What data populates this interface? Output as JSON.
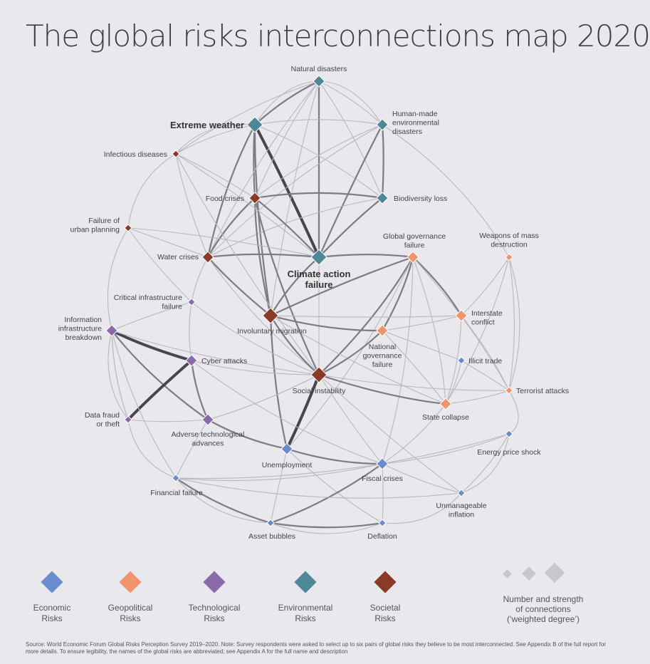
{
  "title": "The global risks interconnections map 2020",
  "colors": {
    "economic": "#6b8ccc",
    "geopolitical": "#f0956a",
    "technological": "#8a6aaa",
    "environmental": "#4e8796",
    "societal": "#8a3b27"
  },
  "nodes": [
    {
      "id": "natural-disasters",
      "label": [
        "Natural disasters"
      ],
      "category": "environmental",
      "weight": 2
    },
    {
      "id": "human-made-disasters",
      "label": [
        "Human-made",
        "environmental",
        "disasters"
      ],
      "category": "environmental",
      "weight": 2
    },
    {
      "id": "extreme-weather",
      "label": [
        "Extreme weather"
      ],
      "category": "environmental",
      "weight": 3,
      "emphasis": true
    },
    {
      "id": "infectious-diseases",
      "label": [
        "Infectious diseases"
      ],
      "category": "societal",
      "weight": 1
    },
    {
      "id": "food-crises",
      "label": [
        "Food crises"
      ],
      "category": "societal",
      "weight": 2
    },
    {
      "id": "biodiversity-loss",
      "label": [
        "Biodiversity loss"
      ],
      "category": "environmental",
      "weight": 2
    },
    {
      "id": "urban-planning",
      "label": [
        "Failure of",
        "urban planning"
      ],
      "category": "societal",
      "weight": 1
    },
    {
      "id": "global-governance",
      "label": [
        "Global governance",
        "failure"
      ],
      "category": "geopolitical",
      "weight": 2
    },
    {
      "id": "wmd",
      "label": [
        "Weapons of mass",
        "destruction"
      ],
      "category": "geopolitical",
      "weight": 1
    },
    {
      "id": "water-crises",
      "label": [
        "Water crises"
      ],
      "category": "societal",
      "weight": 2
    },
    {
      "id": "climate-action",
      "label": [
        "Climate action",
        "failure"
      ],
      "category": "environmental",
      "weight": 3,
      "emphasis": true
    },
    {
      "id": "critical-infrastructure",
      "label": [
        "Critical infrastructure",
        "failure"
      ],
      "category": "technological",
      "weight": 1
    },
    {
      "id": "interstate-conflict",
      "label": [
        "Interstate",
        "conflict"
      ],
      "category": "geopolitical",
      "weight": 2
    },
    {
      "id": "info-infrastructure",
      "label": [
        "Information",
        "infrastructure",
        "breakdown"
      ],
      "category": "technological",
      "weight": 2
    },
    {
      "id": "involuntary-migration",
      "label": [
        "Involuntary migration"
      ],
      "category": "societal",
      "weight": 3
    },
    {
      "id": "national-governance",
      "label": [
        "National",
        "governance",
        "failure"
      ],
      "category": "geopolitical",
      "weight": 2
    },
    {
      "id": "illicit-trade",
      "label": [
        "Illicit trade"
      ],
      "category": "economic",
      "weight": 1
    },
    {
      "id": "cyber-attacks",
      "label": [
        "Cyber attacks"
      ],
      "category": "technological",
      "weight": 2
    },
    {
      "id": "social-instability",
      "label": [
        "Social instability"
      ],
      "category": "societal",
      "weight": 3
    },
    {
      "id": "terrorist-attacks",
      "label": [
        "Terrorist attacks"
      ],
      "category": "geopolitical",
      "weight": 1
    },
    {
      "id": "data-fraud",
      "label": [
        "Data fraud",
        "or theft"
      ],
      "category": "technological",
      "weight": 1
    },
    {
      "id": "state-collapse",
      "label": [
        "State collapse"
      ],
      "category": "geopolitical",
      "weight": 2
    },
    {
      "id": "adverse-tech",
      "label": [
        "Adverse technological",
        "advances"
      ],
      "category": "technological",
      "weight": 2
    },
    {
      "id": "energy-price",
      "label": [
        "Energy price shock"
      ],
      "category": "economic",
      "weight": 1
    },
    {
      "id": "unemployment",
      "label": [
        "Unemployment"
      ],
      "category": "economic",
      "weight": 2
    },
    {
      "id": "fiscal-crises",
      "label": [
        "Fiscal crises"
      ],
      "category": "economic",
      "weight": 2
    },
    {
      "id": "financial-failure",
      "label": [
        "Financial failure"
      ],
      "category": "economic",
      "weight": 1
    },
    {
      "id": "unmanageable-inflation",
      "label": [
        "Unmanageable",
        "inflation"
      ],
      "category": "economic",
      "weight": 1
    },
    {
      "id": "asset-bubbles",
      "label": [
        "Asset bubbles"
      ],
      "category": "economic",
      "weight": 1
    },
    {
      "id": "deflation",
      "label": [
        "Deflation"
      ],
      "category": "economic",
      "weight": 1
    }
  ],
  "edges": [
    [
      "extreme-weather",
      "climate-action",
      3
    ],
    [
      "natural-disasters",
      "climate-action",
      2
    ],
    [
      "extreme-weather",
      "food-crises",
      2
    ],
    [
      "extreme-weather",
      "water-crises",
      2
    ],
    [
      "extreme-weather",
      "natural-disasters",
      2
    ],
    [
      "extreme-weather",
      "human-made-disasters",
      1
    ],
    [
      "extreme-weather",
      "biodiversity-loss",
      1
    ],
    [
      "extreme-weather",
      "involuntary-migration",
      2
    ],
    [
      "extreme-weather",
      "infectious-diseases",
      1
    ],
    [
      "natural-disasters",
      "human-made-disasters",
      1
    ],
    [
      "natural-disasters",
      "food-crises",
      1
    ],
    [
      "natural-disasters",
      "water-crises",
      1
    ],
    [
      "natural-disasters",
      "biodiversity-loss",
      1
    ],
    [
      "natural-disasters",
      "infectious-diseases",
      1
    ],
    [
      "natural-disasters",
      "involuntary-migration",
      1
    ],
    [
      "human-made-disasters",
      "climate-action",
      2
    ],
    [
      "human-made-disasters",
      "biodiversity-loss",
      2
    ],
    [
      "human-made-disasters",
      "water-crises",
      1
    ],
    [
      "human-made-disasters",
      "food-crises",
      1
    ],
    [
      "biodiversity-loss",
      "climate-action",
      2
    ],
    [
      "biodiversity-loss",
      "food-crises",
      2
    ],
    [
      "biodiversity-loss",
      "water-crises",
      1
    ],
    [
      "food-crises",
      "water-crises",
      2
    ],
    [
      "food-crises",
      "climate-action",
      2
    ],
    [
      "food-crises",
      "involuntary-migration",
      2
    ],
    [
      "food-crises",
      "social-instability",
      2
    ],
    [
      "water-crises",
      "climate-action",
      2
    ],
    [
      "water-crises",
      "involuntary-migration",
      2
    ],
    [
      "water-crises",
      "social-instability",
      1
    ],
    [
      "climate-action",
      "involuntary-migration",
      2
    ],
    [
      "climate-action",
      "global-governance",
      2
    ],
    [
      "climate-action",
      "social-instability",
      1
    ],
    [
      "infectious-diseases",
      "water-crises",
      1
    ],
    [
      "infectious-diseases",
      "food-crises",
      1
    ],
    [
      "infectious-diseases",
      "climate-action",
      1
    ],
    [
      "infectious-diseases",
      "social-instability",
      1
    ],
    [
      "urban-planning",
      "water-crises",
      1
    ],
    [
      "urban-planning",
      "climate-action",
      1
    ],
    [
      "urban-planning",
      "critical-infrastructure",
      1
    ],
    [
      "global-governance",
      "involuntary-migration",
      2
    ],
    [
      "global-governance",
      "interstate-conflict",
      2
    ],
    [
      "global-governance",
      "national-governance",
      2
    ],
    [
      "global-governance",
      "social-instability",
      2
    ],
    [
      "global-governance",
      "state-collapse",
      1
    ],
    [
      "global-governance",
      "terrorist-attacks",
      1
    ],
    [
      "global-governance",
      "fiscal-crises",
      1
    ],
    [
      "global-governance",
      "unemployment",
      1
    ],
    [
      "involuntary-migration",
      "social-instability",
      2
    ],
    [
      "involuntary-migration",
      "interstate-conflict",
      1
    ],
    [
      "involuntary-migration",
      "state-collapse",
      1
    ],
    [
      "involuntary-migration",
      "national-governance",
      2
    ],
    [
      "involuntary-migration",
      "unemployment",
      2
    ],
    [
      "national-governance",
      "social-instability",
      2
    ],
    [
      "national-governance",
      "state-collapse",
      1
    ],
    [
      "national-governance",
      "interstate-conflict",
      1
    ],
    [
      "national-governance",
      "illicit-trade",
      1
    ],
    [
      "social-instability",
      "unemployment",
      3
    ],
    [
      "social-instability",
      "fiscal-crises",
      1
    ],
    [
      "social-instability",
      "state-collapse",
      2
    ],
    [
      "social-instability",
      "terrorist-attacks",
      1
    ],
    [
      "social-instability",
      "adverse-tech",
      1
    ],
    [
      "interstate-conflict",
      "wmd",
      1
    ],
    [
      "interstate-conflict",
      "state-collapse",
      1
    ],
    [
      "interstate-conflict",
      "terrorist-attacks",
      1
    ],
    [
      "wmd",
      "terrorist-attacks",
      1
    ],
    [
      "wmd",
      "state-collapse",
      1
    ],
    [
      "state-collapse",
      "illicit-trade",
      1
    ],
    [
      "state-collapse",
      "terrorist-attacks",
      1
    ],
    [
      "state-collapse",
      "fiscal-crises",
      1
    ],
    [
      "info-infrastructure",
      "cyber-attacks",
      3
    ],
    [
      "info-infrastructure",
      "critical-infrastructure",
      1
    ],
    [
      "info-infrastructure",
      "adverse-tech",
      2
    ],
    [
      "info-infrastructure",
      "data-fraud",
      1
    ],
    [
      "info-infrastructure",
      "social-instability",
      1
    ],
    [
      "cyber-attacks",
      "data-fraud",
      3
    ],
    [
      "cyber-attacks",
      "critical-infrastructure",
      1
    ],
    [
      "cyber-attacks",
      "adverse-tech",
      2
    ],
    [
      "cyber-attacks",
      "social-instability",
      1
    ],
    [
      "cyber-attacks",
      "fiscal-crises",
      1
    ],
    [
      "adverse-tech",
      "data-fraud",
      1
    ],
    [
      "adverse-tech",
      "unemployment",
      2
    ],
    [
      "adverse-tech",
      "social-instability",
      1
    ],
    [
      "adverse-tech",
      "financial-failure",
      1
    ],
    [
      "unemployment",
      "fiscal-crises",
      2
    ],
    [
      "unemployment",
      "asset-bubbles",
      1
    ],
    [
      "unemployment",
      "deflation",
      1
    ],
    [
      "fiscal-crises",
      "asset-bubbles",
      2
    ],
    [
      "fiscal-crises",
      "financial-failure",
      1
    ],
    [
      "fiscal-crises",
      "unmanageable-inflation",
      1
    ],
    [
      "fiscal-crises",
      "energy-price",
      1
    ],
    [
      "fiscal-crises",
      "deflation",
      1
    ],
    [
      "financial-failure",
      "asset-bubbles",
      2
    ],
    [
      "financial-failure",
      "unmanageable-inflation",
      1
    ],
    [
      "asset-bubbles",
      "deflation",
      2
    ],
    [
      "energy-price",
      "unmanageable-inflation",
      1
    ],
    [
      "energy-price",
      "financial-failure",
      1
    ],
    [
      "critical-infrastructure",
      "water-crises",
      1
    ],
    [
      "critical-infrastructure",
      "social-instability",
      1
    ],
    [
      "illicit-trade",
      "terrorist-attacks",
      1
    ],
    [
      "data-fraud",
      "info-infrastructure",
      1
    ],
    [
      "financial-failure",
      "info-infrastructure",
      1
    ],
    [
      "unmanageable-inflation",
      "social-instability",
      1
    ]
  ],
  "legend": [
    {
      "category": "economic",
      "label": [
        "Economic",
        "Risks"
      ]
    },
    {
      "category": "geopolitical",
      "label": [
        "Geopolitical",
        "Risks"
      ]
    },
    {
      "category": "technological",
      "label": [
        "Technological",
        "Risks"
      ]
    },
    {
      "category": "environmental",
      "label": [
        "Environmental",
        "Risks"
      ]
    },
    {
      "category": "societal",
      "label": [
        "Societal",
        "Risks"
      ]
    }
  ],
  "size_key": {
    "label": [
      "Number and strength",
      "of connections",
      "(‘weighted degree’)"
    ]
  },
  "source": "Source: World Economic Forum Global Risks Perception Survey 2019–2020. Note: Survey respondents were asked to select up to six pairs of global risks they believe to be most interconnected. See Appendix B of the full report for more details. To ensure legibility, the names of the global risks are abbreviated; see Appendix A for the full name and description"
}
